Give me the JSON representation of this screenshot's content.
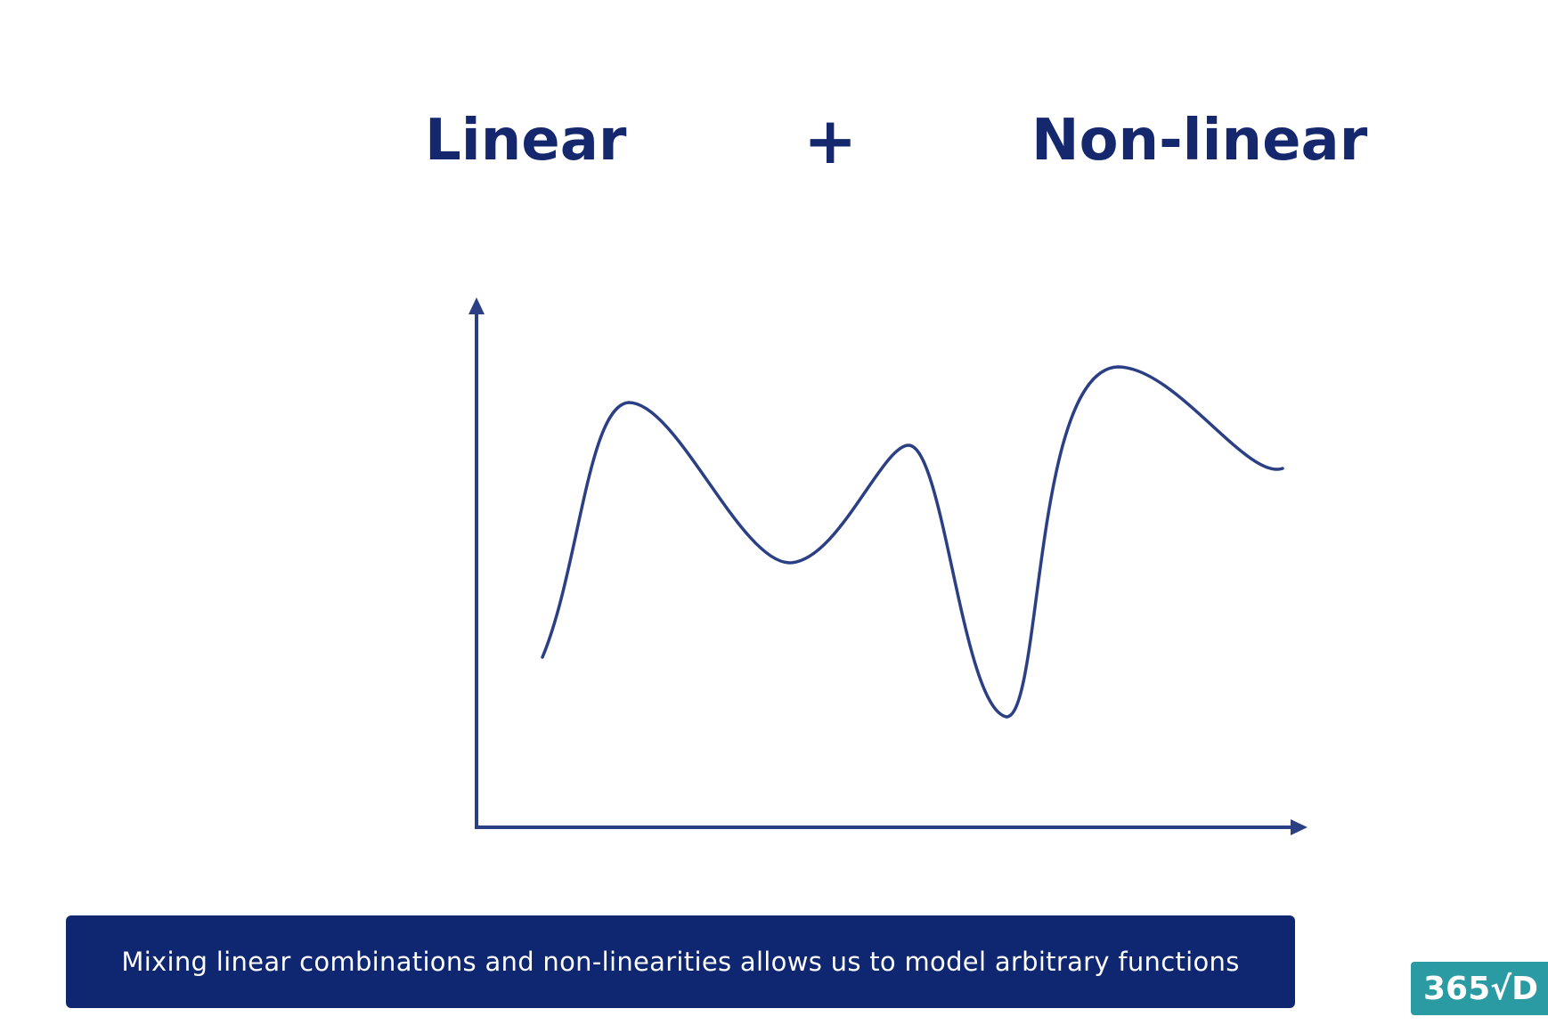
{
  "headings": {
    "left": "Linear",
    "operator": "+",
    "right": "Non-linear"
  },
  "caption": "Mixing linear combinations and non-linearities allows us to model arbitrary functions",
  "logo": {
    "text": "365√D"
  },
  "colors": {
    "heading": "#15286e",
    "axis": "#2b3f85",
    "curve": "#2b3f85",
    "caption_bg": "#0f2670",
    "caption_text": "#ffffff",
    "logo_bg": "#2a9aa3"
  },
  "icons": {
    "y_axis_arrow": "arrow-up-icon",
    "x_axis_arrow": "arrow-right-icon"
  }
}
